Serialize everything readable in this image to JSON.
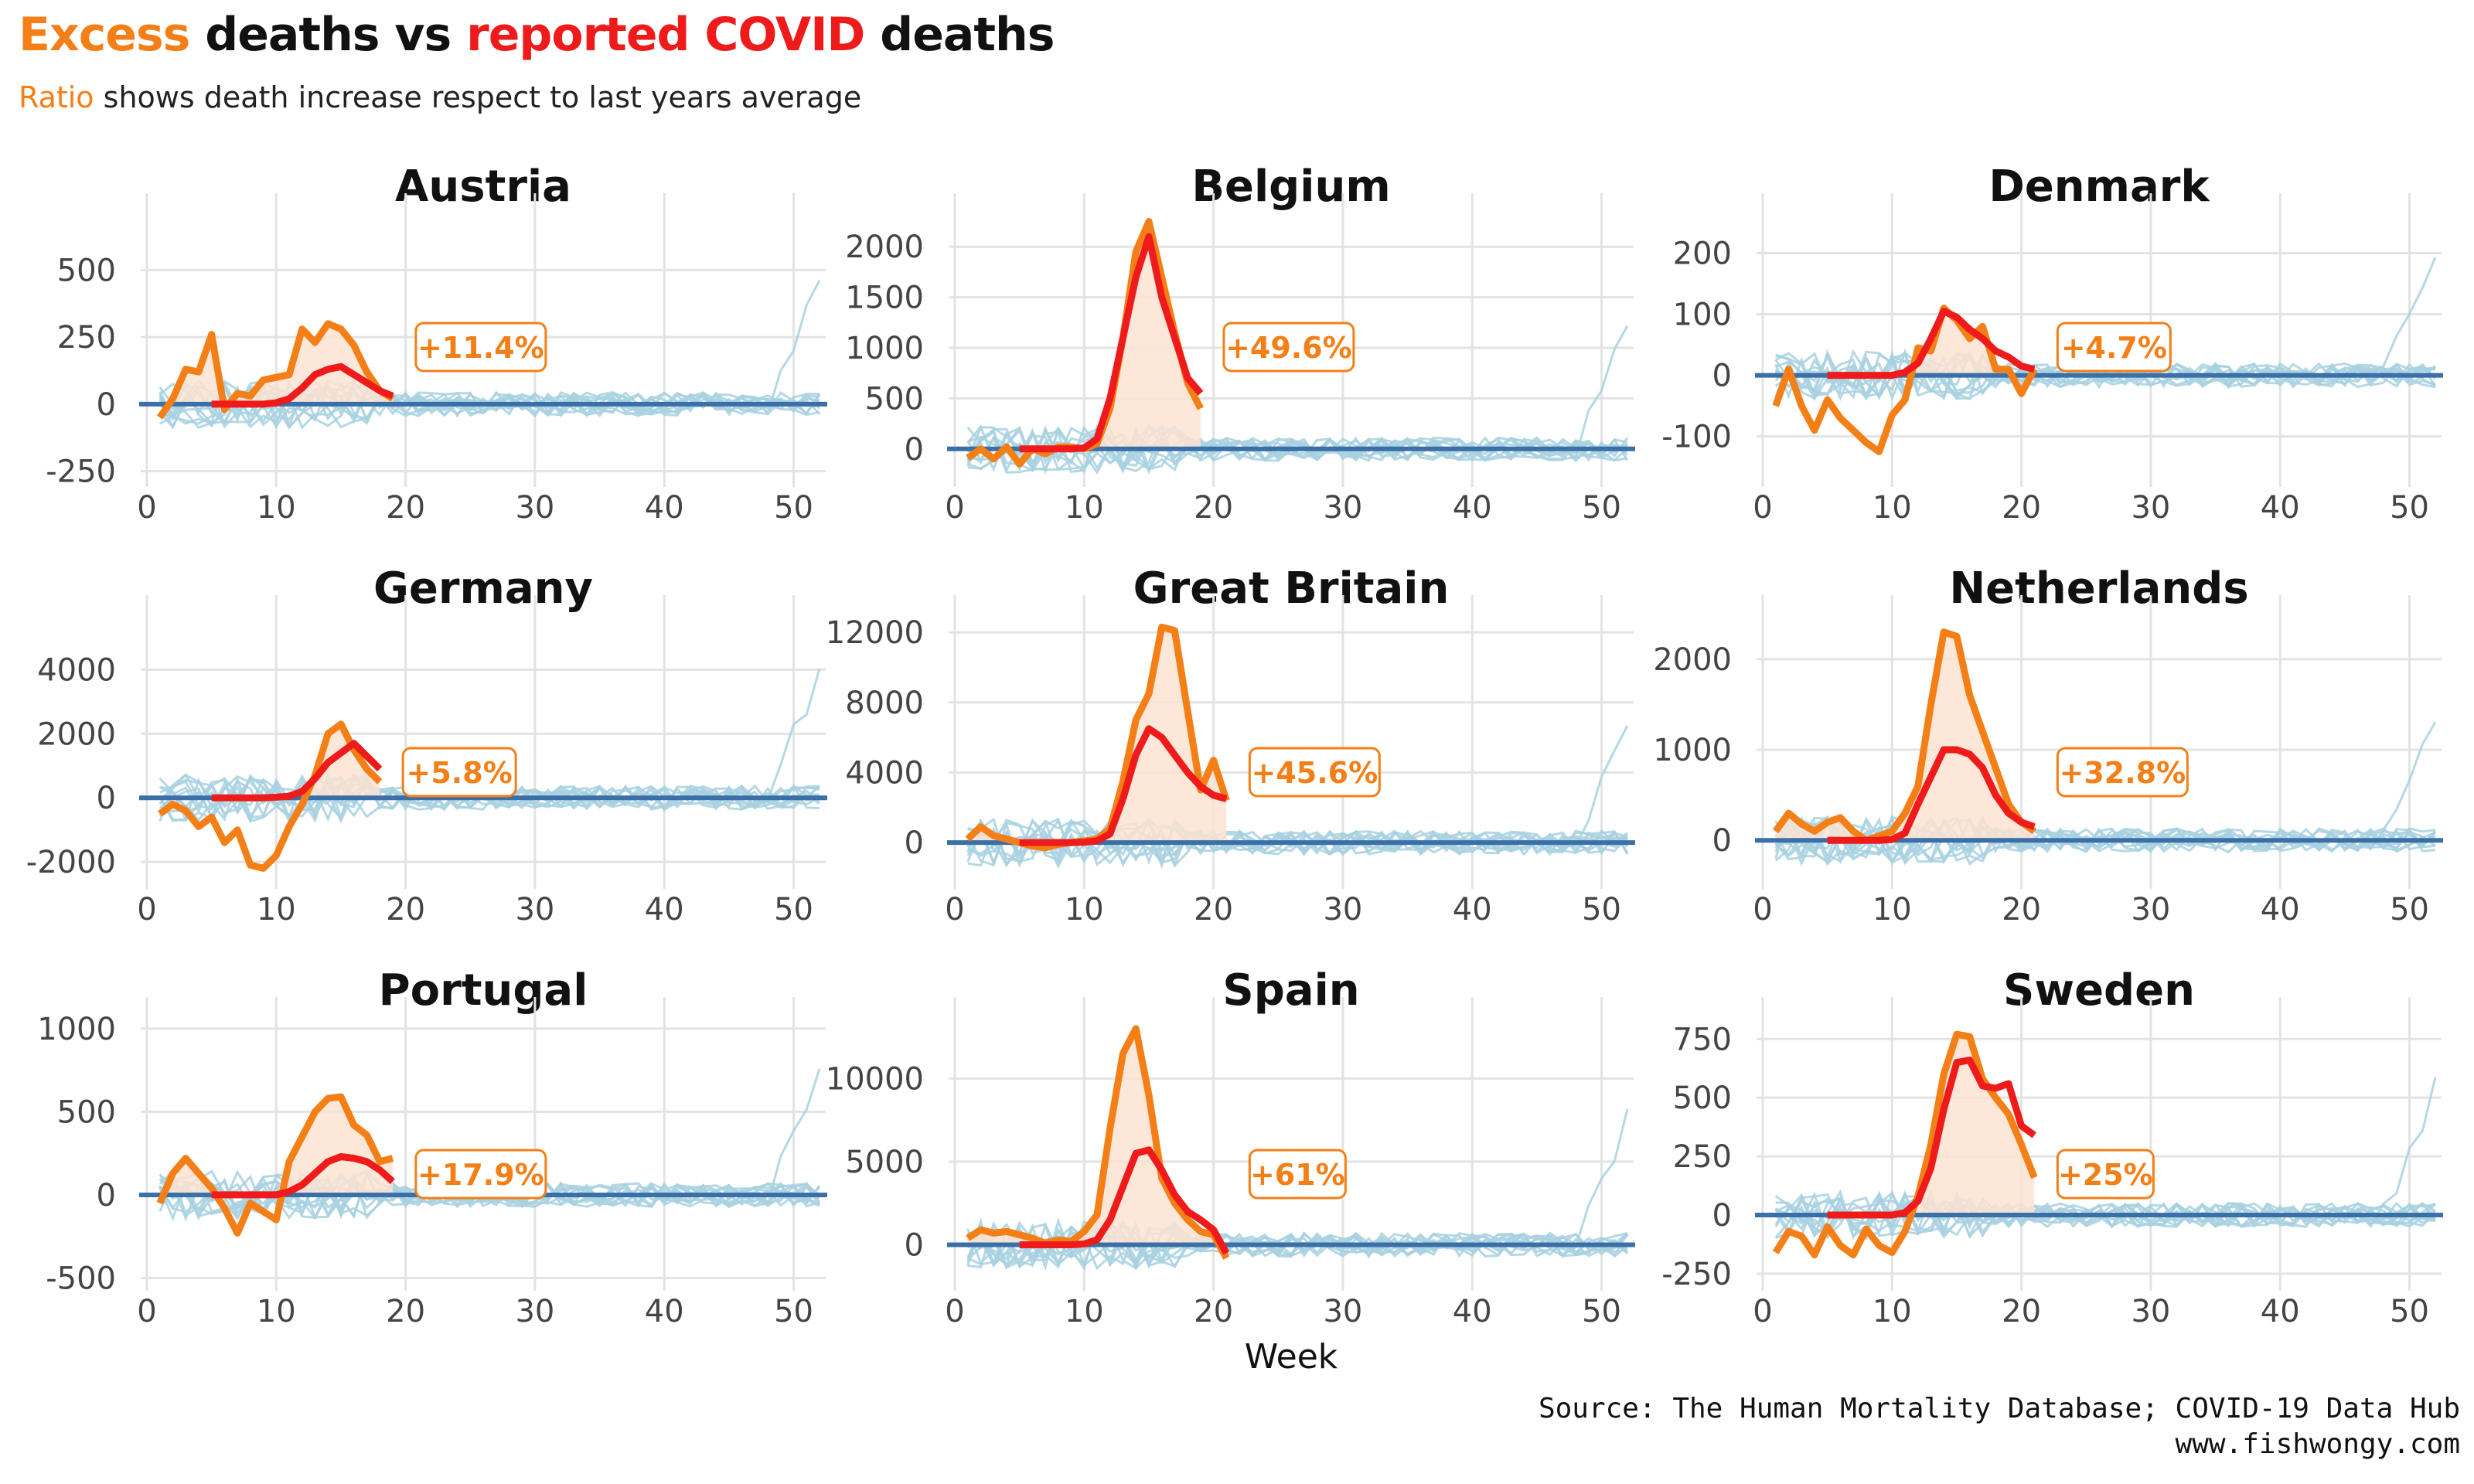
{
  "title": {
    "part1": "Excess",
    "part2": " deaths vs ",
    "part3": "reported COVID",
    "part4": " deaths"
  },
  "subtitle": {
    "part1": "Ratio",
    "part2": " shows death increase respect to last years average"
  },
  "caption": {
    "line1": "Source: The Human Mortality Database; COVID-19 Data Hub",
    "line2": "www.fishwongy.com"
  },
  "colors": {
    "excess": "#f47f17",
    "covid": "#ef1a1a",
    "history": "#a8d1e0",
    "zero": "#3b6fa8",
    "fill": "#fbe3d2",
    "grid": "#e3e3e3"
  },
  "chart_data": [
    {
      "type": "line",
      "country": "Austria",
      "ratio_label": "+11.4%",
      "xlabel": "",
      "xlim": [
        0,
        52
      ],
      "ylim": [
        -280,
        700
      ],
      "yticks": [
        -250,
        0,
        250,
        500
      ],
      "xticks": [
        0,
        10,
        20,
        30,
        40,
        50
      ],
      "series": [
        {
          "x": [
            1,
            2,
            3,
            4,
            5,
            6,
            7,
            8,
            9,
            10,
            11,
            12,
            13,
            14,
            15,
            16,
            17,
            18,
            19
          ],
          "y": [
            -50,
            20,
            130,
            120,
            260,
            -20,
            40,
            30,
            90,
            100,
            110,
            280,
            230,
            300,
            280,
            220,
            120,
            50,
            20
          ]
        },
        {
          "x": [
            5,
            6,
            7,
            8,
            9,
            10,
            11,
            12,
            13,
            14,
            15,
            16,
            17,
            18,
            19
          ],
          "y": [
            0,
            0,
            0,
            0,
            0,
            5,
            20,
            60,
            110,
            130,
            140,
            110,
            80,
            50,
            30
          ]
        }
      ]
    },
    {
      "type": "line",
      "country": "Belgium",
      "ratio_label": "+49.6%",
      "xlabel": "",
      "xlim": [
        0,
        52
      ],
      "ylim": [
        -300,
        2300
      ],
      "yticks": [
        0,
        500,
        1000,
        1500,
        2000
      ],
      "xticks": [
        0,
        10,
        20,
        30,
        40,
        50
      ],
      "series": [
        {
          "x": [
            1,
            2,
            3,
            4,
            5,
            6,
            7,
            8,
            9,
            10,
            11,
            12,
            13,
            14,
            15,
            16,
            17,
            18,
            19
          ],
          "y": [
            -90,
            0,
            -100,
            20,
            -150,
            0,
            -50,
            20,
            20,
            0,
            50,
            400,
            1100,
            1950,
            2250,
            1700,
            1150,
            650,
            400
          ]
        },
        {
          "x": [
            5,
            6,
            7,
            8,
            9,
            10,
            11,
            12,
            13,
            14,
            15,
            16,
            17,
            18,
            19
          ],
          "y": [
            0,
            0,
            0,
            0,
            0,
            10,
            100,
            500,
            1100,
            1700,
            2100,
            1500,
            1100,
            700,
            550
          ]
        }
      ]
    },
    {
      "type": "line",
      "country": "Denmark",
      "ratio_label": "+4.7%",
      "xlabel": "",
      "xlim": [
        0,
        52
      ],
      "ylim": [
        -170,
        260
      ],
      "yticks": [
        -100,
        0,
        100,
        200
      ],
      "xticks": [
        0,
        10,
        20,
        30,
        40,
        50
      ],
      "series": [
        {
          "x": [
            1,
            2,
            3,
            4,
            5,
            6,
            7,
            8,
            9,
            10,
            11,
            12,
            13,
            14,
            15,
            16,
            17,
            18,
            19,
            20,
            21
          ],
          "y": [
            -50,
            10,
            -50,
            -90,
            -40,
            -70,
            -90,
            -110,
            -125,
            -65,
            -40,
            45,
            40,
            110,
            90,
            60,
            80,
            10,
            10,
            -30,
            10
          ]
        },
        {
          "x": [
            5,
            6,
            7,
            8,
            9,
            10,
            11,
            12,
            13,
            14,
            15,
            16,
            17,
            18,
            19,
            20,
            21
          ],
          "y": [
            0,
            0,
            0,
            0,
            0,
            0,
            5,
            20,
            60,
            105,
            95,
            75,
            60,
            40,
            30,
            15,
            10
          ]
        }
      ]
    },
    {
      "type": "line",
      "country": "Germany",
      "ratio_label": "+5.8%",
      "xlabel": "",
      "xlim": [
        0,
        52
      ],
      "ylim": [
        -2600,
        5600
      ],
      "yticks": [
        -2000,
        0,
        2000,
        4000
      ],
      "xticks": [
        0,
        10,
        20,
        30,
        40,
        50
      ],
      "series": [
        {
          "x": [
            1,
            2,
            3,
            4,
            5,
            6,
            7,
            8,
            9,
            10,
            11,
            12,
            13,
            14,
            15,
            16,
            17,
            18
          ],
          "y": [
            -500,
            -200,
            -400,
            -900,
            -600,
            -1400,
            -1000,
            -2100,
            -2200,
            -1800,
            -900,
            -200,
            700,
            2000,
            2300,
            1500,
            900,
            500
          ]
        },
        {
          "x": [
            5,
            6,
            7,
            8,
            9,
            10,
            11,
            12,
            13,
            14,
            15,
            16,
            17,
            18
          ],
          "y": [
            0,
            0,
            0,
            0,
            0,
            20,
            50,
            200,
            600,
            1100,
            1400,
            1700,
            1300,
            900
          ]
        }
      ]
    },
    {
      "type": "line",
      "country": "Great Britain",
      "ratio_label": "+45.6%",
      "xlabel": "",
      "xlim": [
        0,
        52
      ],
      "ylim": [
        -2200,
        12800
      ],
      "yticks": [
        0,
        4000,
        8000,
        12000
      ],
      "xticks": [
        0,
        10,
        20,
        30,
        40,
        50
      ],
      "series": [
        {
          "x": [
            1,
            2,
            3,
            4,
            5,
            6,
            7,
            8,
            9,
            10,
            11,
            12,
            13,
            14,
            15,
            16,
            17,
            18,
            19,
            20,
            21
          ],
          "y": [
            200,
            900,
            400,
            200,
            0,
            -200,
            -300,
            -100,
            0,
            100,
            200,
            800,
            3500,
            7000,
            8500,
            12300,
            12100,
            7500,
            3000,
            4700,
            2400
          ]
        },
        {
          "x": [
            5,
            6,
            7,
            8,
            9,
            10,
            11,
            12,
            13,
            14,
            15,
            16,
            17,
            18,
            19,
            20,
            21
          ],
          "y": [
            0,
            0,
            0,
            0,
            0,
            20,
            100,
            500,
            2500,
            5000,
            6500,
            6000,
            5000,
            4000,
            3200,
            2700,
            2500
          ]
        }
      ]
    },
    {
      "type": "line",
      "country": "Netherlands",
      "ratio_label": "+32.8%",
      "xlabel": "",
      "xlim": [
        0,
        52
      ],
      "ylim": [
        -450,
        2450
      ],
      "yticks": [
        0,
        1000,
        2000
      ],
      "xticks": [
        0,
        10,
        20,
        30,
        40,
        50
      ],
      "series": [
        {
          "x": [
            1,
            2,
            3,
            4,
            5,
            6,
            7,
            8,
            9,
            10,
            11,
            12,
            13,
            14,
            15,
            16,
            17,
            18,
            19,
            20,
            21
          ],
          "y": [
            100,
            300,
            180,
            100,
            200,
            250,
            100,
            0,
            50,
            100,
            300,
            600,
            1500,
            2300,
            2250,
            1600,
            1200,
            800,
            400,
            200,
            100
          ]
        },
        {
          "x": [
            5,
            6,
            7,
            8,
            9,
            10,
            11,
            12,
            13,
            14,
            15,
            16,
            17,
            18,
            19,
            20,
            21
          ],
          "y": [
            0,
            0,
            0,
            0,
            0,
            10,
            80,
            400,
            700,
            1000,
            1000,
            950,
            800,
            500,
            300,
            200,
            150
          ]
        }
      ]
    },
    {
      "type": "line",
      "country": "Portugal",
      "ratio_label": "+17.9%",
      "xlabel": "",
      "xlim": [
        0,
        52
      ],
      "ylim": [
        -530,
        1050
      ],
      "yticks": [
        -500,
        0,
        500,
        1000
      ],
      "xticks": [
        0,
        10,
        20,
        30,
        40,
        50
      ],
      "series": [
        {
          "x": [
            1,
            2,
            3,
            4,
            5,
            6,
            7,
            8,
            9,
            10,
            11,
            12,
            13,
            14,
            15,
            16,
            17,
            18,
            19
          ],
          "y": [
            -50,
            130,
            220,
            130,
            40,
            -80,
            -230,
            -50,
            -100,
            -150,
            200,
            350,
            500,
            580,
            590,
            420,
            360,
            200,
            220
          ]
        },
        {
          "x": [
            5,
            6,
            7,
            8,
            9,
            10,
            11,
            12,
            13,
            14,
            15,
            16,
            17,
            18,
            19
          ],
          "y": [
            0,
            0,
            0,
            0,
            0,
            0,
            20,
            60,
            130,
            200,
            230,
            220,
            200,
            150,
            80
          ]
        }
      ]
    },
    {
      "type": "line",
      "country": "Spain",
      "ratio_label": "+61%",
      "xlabel": "Week",
      "xlim": [
        0,
        52
      ],
      "ylim": [
        -2300,
        13500
      ],
      "yticks": [
        0,
        5000,
        10000
      ],
      "xticks": [
        0,
        10,
        20,
        30,
        40,
        50
      ],
      "series": [
        {
          "x": [
            1,
            2,
            3,
            4,
            5,
            6,
            7,
            8,
            9,
            10,
            11,
            12,
            13,
            14,
            15,
            16,
            17,
            18,
            19,
            20,
            21
          ],
          "y": [
            400,
            900,
            700,
            800,
            600,
            400,
            100,
            300,
            200,
            800,
            1800,
            7000,
            11500,
            13000,
            9000,
            4000,
            2500,
            1500,
            800,
            600,
            -800
          ]
        },
        {
          "x": [
            5,
            6,
            7,
            8,
            9,
            10,
            11,
            12,
            13,
            14,
            15,
            16,
            17,
            18,
            19,
            20,
            21
          ],
          "y": [
            0,
            0,
            0,
            0,
            0,
            50,
            300,
            1500,
            3500,
            5500,
            5700,
            4500,
            3000,
            2000,
            1500,
            900,
            -500
          ]
        }
      ]
    },
    {
      "type": "line",
      "country": "Sweden",
      "ratio_label": "+25%",
      "xlabel": "",
      "xlim": [
        0,
        52
      ],
      "ylim": [
        -290,
        830
      ],
      "yticks": [
        -250,
        0,
        250,
        500,
        750
      ],
      "xticks": [
        0,
        10,
        20,
        30,
        40,
        50
      ],
      "series": [
        {
          "x": [
            1,
            2,
            3,
            4,
            5,
            6,
            7,
            8,
            9,
            10,
            11,
            12,
            13,
            14,
            15,
            16,
            17,
            18,
            19,
            20,
            21
          ],
          "y": [
            -160,
            -70,
            -90,
            -170,
            -50,
            -130,
            -170,
            -60,
            -130,
            -160,
            -70,
            80,
            300,
            600,
            770,
            760,
            580,
            500,
            430,
            300,
            160
          ]
        },
        {
          "x": [
            5,
            6,
            7,
            8,
            9,
            10,
            11,
            12,
            13,
            14,
            15,
            16,
            17,
            18,
            19,
            20,
            21
          ],
          "y": [
            0,
            0,
            0,
            0,
            0,
            0,
            10,
            60,
            200,
            450,
            650,
            660,
            550,
            540,
            560,
            380,
            340
          ]
        }
      ]
    }
  ]
}
